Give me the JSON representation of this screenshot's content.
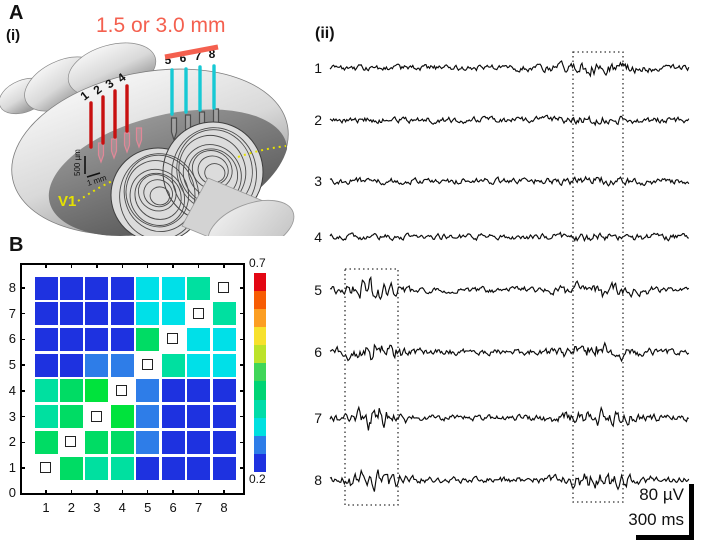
{
  "figure": {
    "panel_a_label": "A",
    "panel_i_label": "(i)",
    "panel_b_label": "B",
    "panel_ii_label": "(ii)"
  },
  "diagram": {
    "distance_label": "1.5 or 3.0 mm",
    "area_label": "V1",
    "depth_scale_label": "500 µm",
    "width_scale_label": "1 mm",
    "red_electrode_labels": [
      "1",
      "2",
      "3",
      "4"
    ],
    "cyan_electrode_labels": [
      "5",
      "6",
      "7",
      "8"
    ],
    "colors": {
      "annotation_coral": "#f4604f",
      "red_electrode": "#c81010",
      "cyan_electrode": "#17c9d4",
      "v1_yellow": "#e6e200"
    }
  },
  "traces": {
    "labels": [
      "1",
      "2",
      "3",
      "4",
      "5",
      "6",
      "7",
      "8"
    ],
    "scale_voltage_label": "80 µV",
    "scale_time_label": "300 ms",
    "highlight_box_count": 2
  },
  "chart_data": {
    "type": "heatmap",
    "title": "",
    "xlabel": "",
    "ylabel": "",
    "x_tick_labels": [
      "1",
      "2",
      "3",
      "4",
      "5",
      "6",
      "7",
      "8"
    ],
    "y_tick_labels": [
      "0",
      "1",
      "2",
      "3",
      "4",
      "5",
      "6",
      "7",
      "8"
    ],
    "matrix_rows_top_to_bottom": [
      {
        "row": 8,
        "cells": [
          "B",
          "B",
          "B",
          "B",
          "C",
          "C",
          "T",
          "O"
        ]
      },
      {
        "row": 7,
        "cells": [
          "B",
          "B",
          "B",
          "B",
          "C",
          "C",
          "O",
          "T"
        ]
      },
      {
        "row": 6,
        "cells": [
          "B",
          "B",
          "B",
          "B",
          "G",
          "O",
          "C",
          "C"
        ]
      },
      {
        "row": 5,
        "cells": [
          "B",
          "B",
          "M",
          "M",
          "O",
          "T",
          "C",
          "C"
        ]
      },
      {
        "row": 4,
        "cells": [
          "T",
          "G",
          "H",
          "O",
          "M",
          "B",
          "B",
          "B"
        ]
      },
      {
        "row": 3,
        "cells": [
          "T",
          "G",
          "O",
          "H",
          "M",
          "B",
          "B",
          "B"
        ]
      },
      {
        "row": 2,
        "cells": [
          "G",
          "O",
          "G",
          "G",
          "M",
          "B",
          "B",
          "B"
        ]
      },
      {
        "row": 1,
        "cells": [
          "O",
          "G",
          "T",
          "T",
          "B",
          "B",
          "B",
          "B"
        ]
      }
    ],
    "palette": {
      "B": {
        "hex": "#1E32E0",
        "approx_value": 0.22
      },
      "M": {
        "hex": "#2E7DE8",
        "approx_value": 0.3
      },
      "C": {
        "hex": "#00E0E8",
        "approx_value": 0.4
      },
      "T": {
        "hex": "#00E0A0",
        "approx_value": 0.45
      },
      "G": {
        "hex": "#00DC64",
        "approx_value": 0.48
      },
      "H": {
        "hex": "#00E33C",
        "approx_value": 0.52
      },
      "O": {
        "meaning": "diagonal open-square marker (self pair)"
      }
    },
    "colorbar": {
      "min": 0.2,
      "max": 0.7,
      "top_label": "0.7",
      "bottom_label": "0.2",
      "segments_top_to_bottom": [
        "#E30613",
        "#F75C03",
        "#FC9E22",
        "#F7E12D",
        "#BCE32A",
        "#3FD658",
        "#00D474",
        "#00DCA8",
        "#00E0E0",
        "#2E7DE8",
        "#1E32E0"
      ]
    }
  }
}
